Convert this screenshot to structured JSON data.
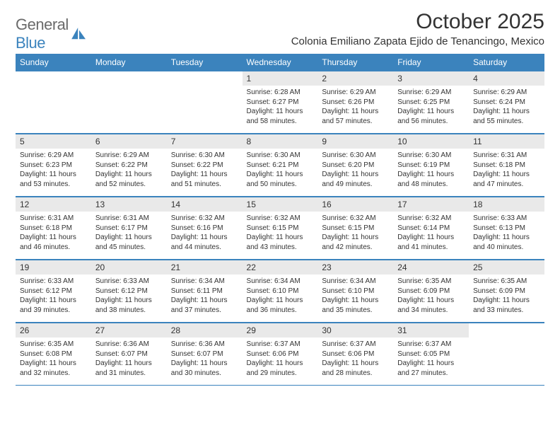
{
  "logo": {
    "word1": "General",
    "word2": "Blue"
  },
  "title": "October 2025",
  "location": "Colonia Emiliano Zapata Ejido de Tenancingo, Mexico",
  "colors": {
    "accent": "#3b83bd",
    "daynum_bg": "#e9e9e9",
    "text": "#333333"
  },
  "weekdays": [
    "Sunday",
    "Monday",
    "Tuesday",
    "Wednesday",
    "Thursday",
    "Friday",
    "Saturday"
  ],
  "weeks": [
    [
      null,
      null,
      null,
      {
        "n": "1",
        "sunrise": "6:28 AM",
        "sunset": "6:27 PM",
        "dlh": "11",
        "dlm": "58"
      },
      {
        "n": "2",
        "sunrise": "6:29 AM",
        "sunset": "6:26 PM",
        "dlh": "11",
        "dlm": "57"
      },
      {
        "n": "3",
        "sunrise": "6:29 AM",
        "sunset": "6:25 PM",
        "dlh": "11",
        "dlm": "56"
      },
      {
        "n": "4",
        "sunrise": "6:29 AM",
        "sunset": "6:24 PM",
        "dlh": "11",
        "dlm": "55"
      }
    ],
    [
      {
        "n": "5",
        "sunrise": "6:29 AM",
        "sunset": "6:23 PM",
        "dlh": "11",
        "dlm": "53"
      },
      {
        "n": "6",
        "sunrise": "6:29 AM",
        "sunset": "6:22 PM",
        "dlh": "11",
        "dlm": "52"
      },
      {
        "n": "7",
        "sunrise": "6:30 AM",
        "sunset": "6:22 PM",
        "dlh": "11",
        "dlm": "51"
      },
      {
        "n": "8",
        "sunrise": "6:30 AM",
        "sunset": "6:21 PM",
        "dlh": "11",
        "dlm": "50"
      },
      {
        "n": "9",
        "sunrise": "6:30 AM",
        "sunset": "6:20 PM",
        "dlh": "11",
        "dlm": "49"
      },
      {
        "n": "10",
        "sunrise": "6:30 AM",
        "sunset": "6:19 PM",
        "dlh": "11",
        "dlm": "48"
      },
      {
        "n": "11",
        "sunrise": "6:31 AM",
        "sunset": "6:18 PM",
        "dlh": "11",
        "dlm": "47"
      }
    ],
    [
      {
        "n": "12",
        "sunrise": "6:31 AM",
        "sunset": "6:18 PM",
        "dlh": "11",
        "dlm": "46"
      },
      {
        "n": "13",
        "sunrise": "6:31 AM",
        "sunset": "6:17 PM",
        "dlh": "11",
        "dlm": "45"
      },
      {
        "n": "14",
        "sunrise": "6:32 AM",
        "sunset": "6:16 PM",
        "dlh": "11",
        "dlm": "44"
      },
      {
        "n": "15",
        "sunrise": "6:32 AM",
        "sunset": "6:15 PM",
        "dlh": "11",
        "dlm": "43"
      },
      {
        "n": "16",
        "sunrise": "6:32 AM",
        "sunset": "6:15 PM",
        "dlh": "11",
        "dlm": "42"
      },
      {
        "n": "17",
        "sunrise": "6:32 AM",
        "sunset": "6:14 PM",
        "dlh": "11",
        "dlm": "41"
      },
      {
        "n": "18",
        "sunrise": "6:33 AM",
        "sunset": "6:13 PM",
        "dlh": "11",
        "dlm": "40"
      }
    ],
    [
      {
        "n": "19",
        "sunrise": "6:33 AM",
        "sunset": "6:12 PM",
        "dlh": "11",
        "dlm": "39"
      },
      {
        "n": "20",
        "sunrise": "6:33 AM",
        "sunset": "6:12 PM",
        "dlh": "11",
        "dlm": "38"
      },
      {
        "n": "21",
        "sunrise": "6:34 AM",
        "sunset": "6:11 PM",
        "dlh": "11",
        "dlm": "37"
      },
      {
        "n": "22",
        "sunrise": "6:34 AM",
        "sunset": "6:10 PM",
        "dlh": "11",
        "dlm": "36"
      },
      {
        "n": "23",
        "sunrise": "6:34 AM",
        "sunset": "6:10 PM",
        "dlh": "11",
        "dlm": "35"
      },
      {
        "n": "24",
        "sunrise": "6:35 AM",
        "sunset": "6:09 PM",
        "dlh": "11",
        "dlm": "34"
      },
      {
        "n": "25",
        "sunrise": "6:35 AM",
        "sunset": "6:09 PM",
        "dlh": "11",
        "dlm": "33"
      }
    ],
    [
      {
        "n": "26",
        "sunrise": "6:35 AM",
        "sunset": "6:08 PM",
        "dlh": "11",
        "dlm": "32"
      },
      {
        "n": "27",
        "sunrise": "6:36 AM",
        "sunset": "6:07 PM",
        "dlh": "11",
        "dlm": "31"
      },
      {
        "n": "28",
        "sunrise": "6:36 AM",
        "sunset": "6:07 PM",
        "dlh": "11",
        "dlm": "30"
      },
      {
        "n": "29",
        "sunrise": "6:37 AM",
        "sunset": "6:06 PM",
        "dlh": "11",
        "dlm": "29"
      },
      {
        "n": "30",
        "sunrise": "6:37 AM",
        "sunset": "6:06 PM",
        "dlh": "11",
        "dlm": "28"
      },
      {
        "n": "31",
        "sunrise": "6:37 AM",
        "sunset": "6:05 PM",
        "dlh": "11",
        "dlm": "27"
      },
      null
    ]
  ]
}
